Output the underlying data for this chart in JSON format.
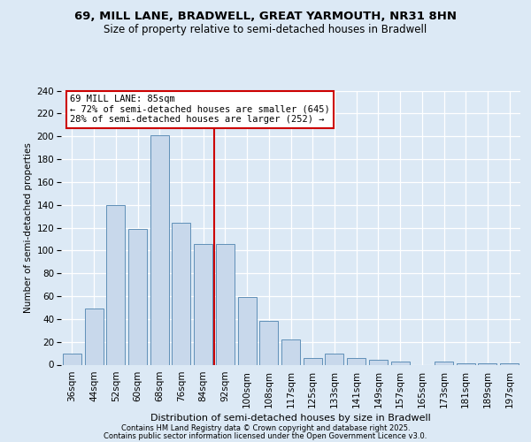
{
  "title1": "69, MILL LANE, BRADWELL, GREAT YARMOUTH, NR31 8HN",
  "title2": "Size of property relative to semi-detached houses in Bradwell",
  "xlabel": "Distribution of semi-detached houses by size in Bradwell",
  "ylabel": "Number of semi-detached properties",
  "categories": [
    "36sqm",
    "44sqm",
    "52sqm",
    "60sqm",
    "68sqm",
    "76sqm",
    "84sqm",
    "92sqm",
    "100sqm",
    "108sqm",
    "117sqm",
    "125sqm",
    "133sqm",
    "141sqm",
    "149sqm",
    "157sqm",
    "165sqm",
    "173sqm",
    "181sqm",
    "189sqm",
    "197sqm"
  ],
  "values": [
    10,
    49,
    140,
    119,
    201,
    124,
    106,
    106,
    59,
    38,
    22,
    6,
    10,
    6,
    4,
    3,
    0,
    3,
    1,
    1,
    1
  ],
  "bar_color": "#c8d8eb",
  "bar_edge_color": "#6090b8",
  "vline_color": "#cc0000",
  "vline_x": 6.5,
  "annotation_text": "69 MILL LANE: 85sqm\n← 72% of semi-detached houses are smaller (645)\n28% of semi-detached houses are larger (252) →",
  "annotation_box_facecolor": "#ffffff",
  "annotation_box_edgecolor": "#cc0000",
  "footer1": "Contains HM Land Registry data © Crown copyright and database right 2025.",
  "footer2": "Contains public sector information licensed under the Open Government Licence v3.0.",
  "ylim": [
    0,
    240
  ],
  "yticks": [
    0,
    20,
    40,
    60,
    80,
    100,
    120,
    140,
    160,
    180,
    200,
    220,
    240
  ],
  "bg_color": "#dce9f5",
  "grid_color": "#ffffff",
  "title1_fontsize": 9.5,
  "title2_fontsize": 8.5,
  "ylabel_fontsize": 7.5,
  "xlabel_fontsize": 8.0,
  "tick_fontsize": 7.5,
  "annot_fontsize": 7.5,
  "footer_fontsize": 6.0
}
